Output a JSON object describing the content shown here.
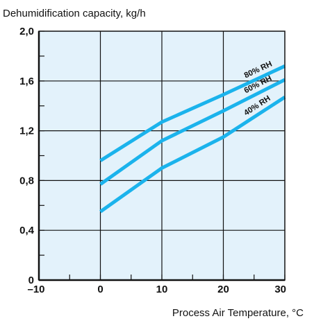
{
  "chart_data": {
    "type": "line",
    "title": "Dehumidification capacity, kg/h",
    "xlabel": "Process Air Temperature, °C",
    "ylabel": "Dehumidification capacity, kg/h",
    "xlim": [
      -10,
      30
    ],
    "ylim": [
      0,
      2.0
    ],
    "x_ticks": [
      -10,
      0,
      10,
      20,
      30
    ],
    "x_tick_labels": [
      "–10",
      "0",
      "10",
      "20",
      "30"
    ],
    "y_ticks": [
      0,
      0.4,
      0.8,
      1.2,
      1.6,
      2.0
    ],
    "y_tick_labels": [
      "0",
      "0,4",
      "0,8",
      "1,2",
      "1,6",
      "2,0"
    ],
    "grid": true,
    "colors": {
      "plot_background": "#e3f2fb",
      "series_line": "#1bb3ec",
      "grid": "#111111"
    },
    "series": [
      {
        "name": "80% RH",
        "x": [
          0,
          10,
          20,
          30
        ],
        "y": [
          0.96,
          1.27,
          1.49,
          1.72
        ]
      },
      {
        "name": "60% RH",
        "x": [
          0,
          10,
          20,
          30
        ],
        "y": [
          0.77,
          1.12,
          1.36,
          1.61
        ]
      },
      {
        "name": "40% RH",
        "x": [
          0,
          10,
          20,
          30
        ],
        "y": [
          0.55,
          0.9,
          1.15,
          1.47
        ]
      }
    ]
  }
}
